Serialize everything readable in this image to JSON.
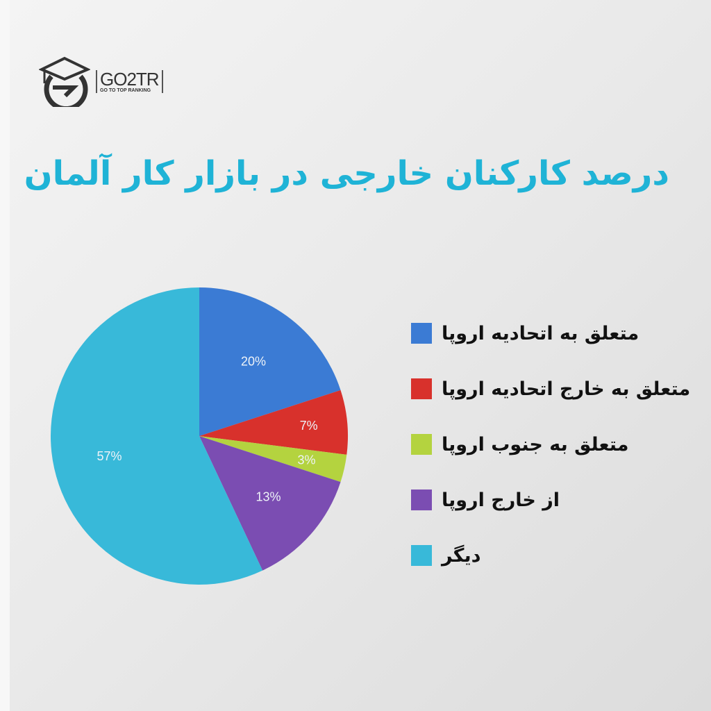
{
  "logo": {
    "main": "GO2TR",
    "sub": "GO TO TOP RANKING"
  },
  "chart_data": {
    "type": "pie",
    "title": "درصد کارکنان خارجی در بازار کار آلمان",
    "start": "12 o'clock, clockwise",
    "legend_position": "right",
    "slices": [
      {
        "label": "متعلق به اتحادیه اروپا",
        "value": 20,
        "data_label": "20%",
        "color": "#3b7bd4"
      },
      {
        "label": "متعلق به خارج اتحادیه اروپا",
        "value": 7,
        "data_label": "7%",
        "color": "#d8312c"
      },
      {
        "label": "متعلق به جنوب اروپا",
        "value": 3,
        "data_label": "3%",
        "color": "#b4d33f"
      },
      {
        "label": "از خارج اروپا",
        "value": 13,
        "data_label": "13%",
        "color": "#7b4db2"
      },
      {
        "label": "دیگر",
        "value": 57,
        "data_label": "57%",
        "color": "#38b9d9"
      }
    ]
  }
}
